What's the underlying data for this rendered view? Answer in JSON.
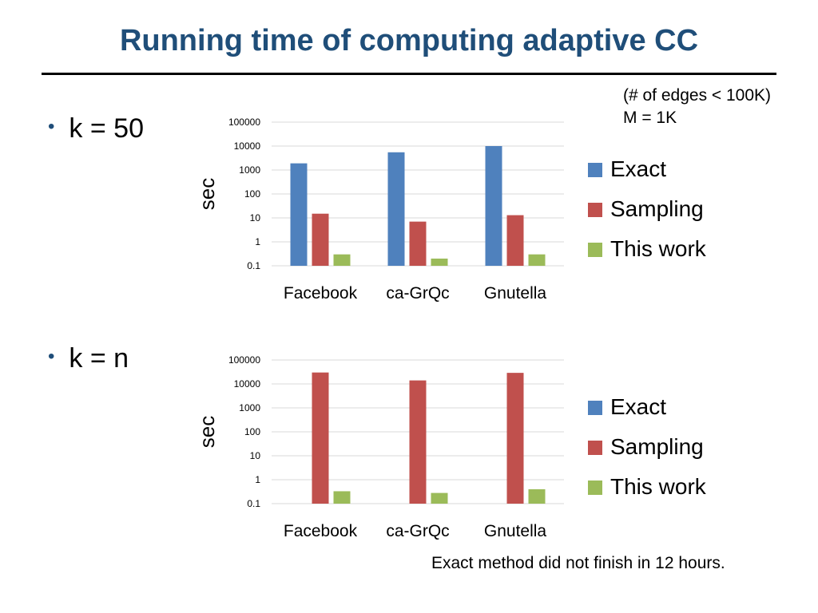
{
  "title": "Running time of computing adaptive CC",
  "note": [
    "(# of edges < 100K)",
    "M = 1K"
  ],
  "bullets": [
    "k = 50",
    "k = n"
  ],
  "footnote": "Exact method did not finish in 12 hours.",
  "colors": {
    "Exact": "#4f81bd",
    "Sampling": "#c0504d",
    "This work": "#9bbb59",
    "title": "#1f4e79"
  },
  "chart_data": [
    {
      "type": "bar",
      "ylabel": "sec",
      "yscale": "log",
      "ylim": [
        0.1,
        100000
      ],
      "yticks": [
        "0.1",
        "1",
        "10",
        "100",
        "1000",
        "10000",
        "100000"
      ],
      "categories": [
        "Facebook",
        "ca-GrQc",
        "Gnutella"
      ],
      "legend_position": "right",
      "series": [
        {
          "name": "Exact",
          "values": [
            1900,
            5500,
            10000
          ]
        },
        {
          "name": "Sampling",
          "values": [
            15,
            7,
            13
          ]
        },
        {
          "name": "This work",
          "values": [
            0.3,
            0.2,
            0.3
          ]
        }
      ]
    },
    {
      "type": "bar",
      "ylabel": "sec",
      "yscale": "log",
      "ylim": [
        0.1,
        100000
      ],
      "yticks": [
        "0.1",
        "1",
        "10",
        "100",
        "1000",
        "10000",
        "100000"
      ],
      "categories": [
        "Facebook",
        "ca-GrQc",
        "Gnutella"
      ],
      "legend_position": "right",
      "series": [
        {
          "name": "Exact",
          "values": [
            null,
            null,
            null
          ]
        },
        {
          "name": "Sampling",
          "values": [
            30000,
            14000,
            29000
          ]
        },
        {
          "name": "This work",
          "values": [
            0.33,
            0.28,
            0.4
          ]
        }
      ]
    }
  ]
}
